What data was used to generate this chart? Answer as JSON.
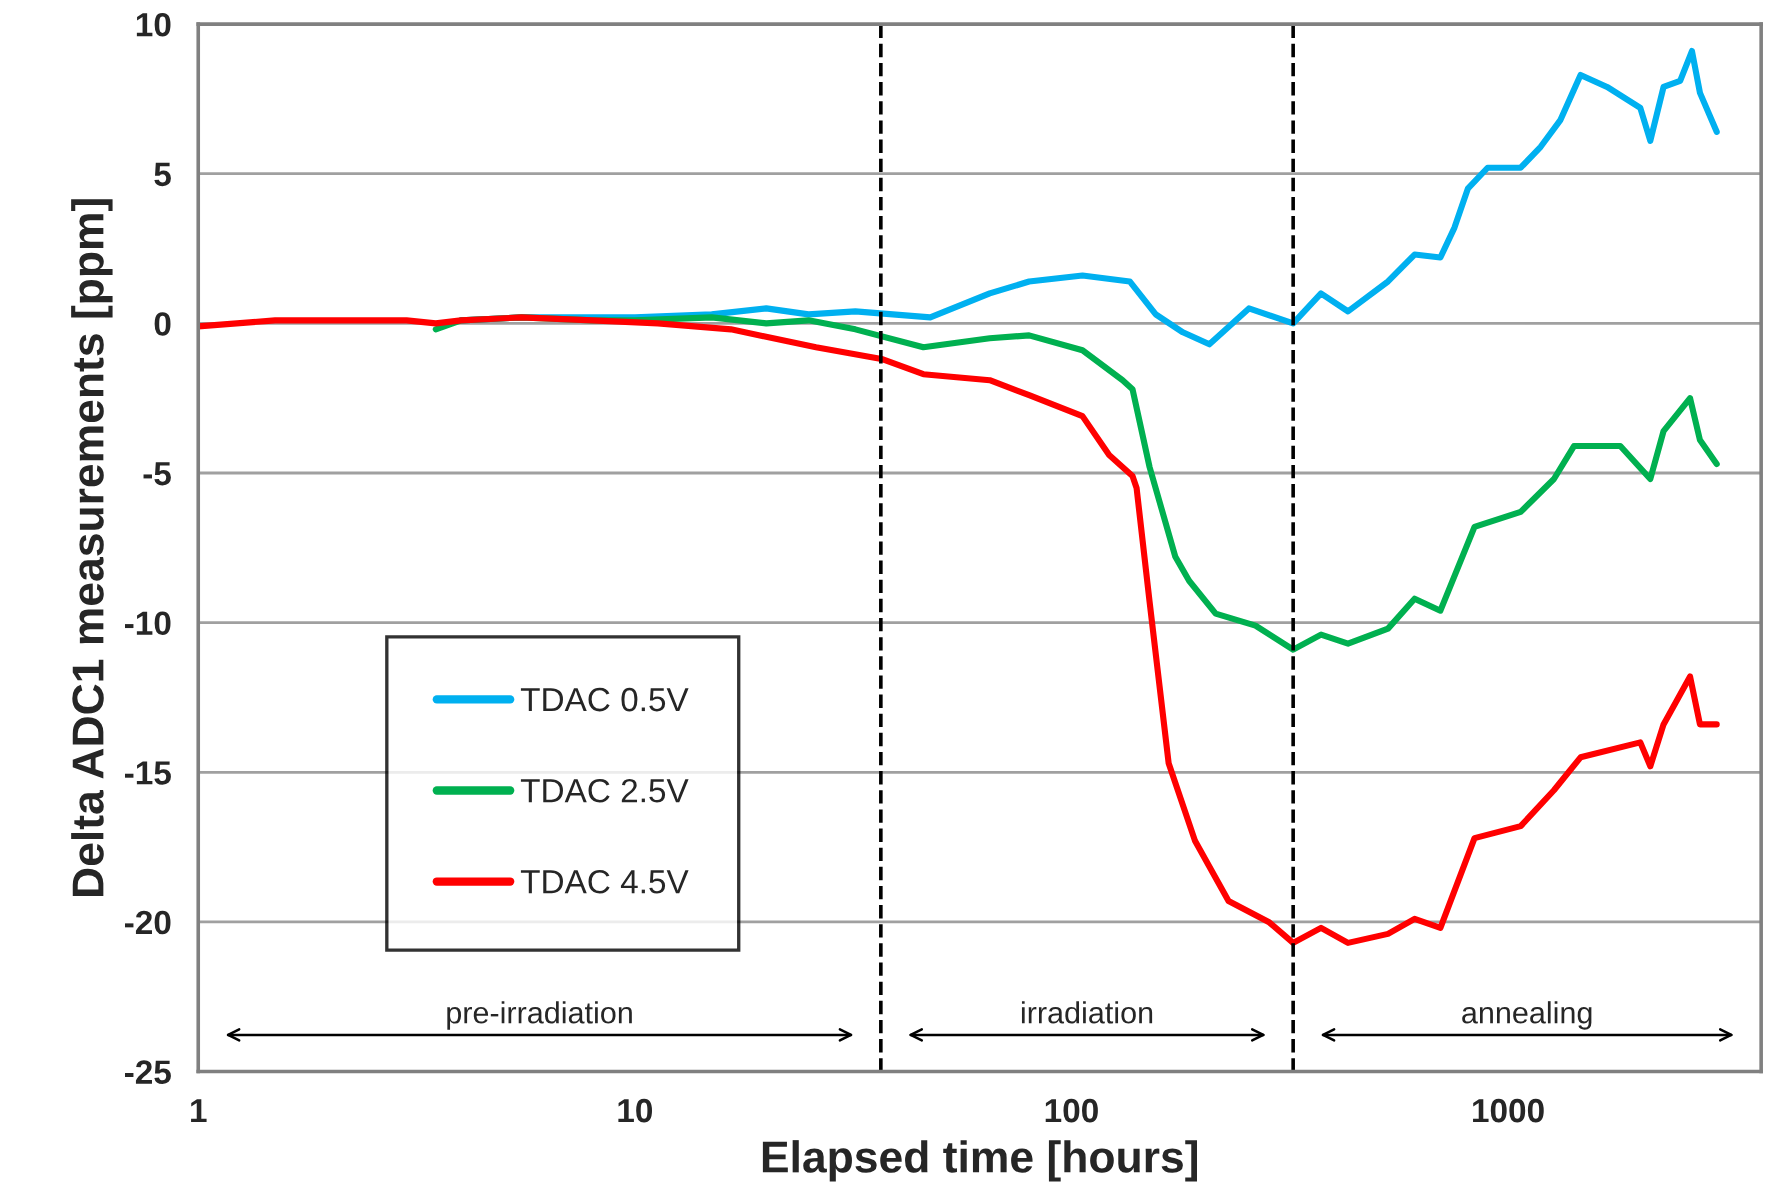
{
  "chart_data": {
    "type": "line",
    "xlabel": "Elapsed time [hours]",
    "ylabel": "Delta ADC1 measurements [ppm]",
    "log": "x",
    "xlim": [
      1,
      3800
    ],
    "xticks": [
      1,
      10,
      100,
      1000
    ],
    "ylim": [
      -25,
      10
    ],
    "yticks": [
      -25,
      -20,
      -15,
      -10,
      -5,
      0,
      5,
      10
    ],
    "grid": "y",
    "legend": "bottom left",
    "line_style": "solid",
    "marker": "none",
    "series": [
      {
        "name": "TDAC 0.5V",
        "color": "#00b0f0",
        "x": [
          4,
          5.5,
          8,
          10,
          15,
          20,
          25,
          32,
          47.5,
          65,
          80,
          106,
          136,
          156,
          180,
          207,
          255,
          322,
          373,
          430,
          531,
          611,
          700,
          754,
          809,
          898,
          1069,
          1188,
          1319,
          1466,
          1686,
          2009,
          2118,
          2271,
          2479,
          2638,
          2752,
          3006
        ],
        "values": [
          0.1,
          0.2,
          0.2,
          0.2,
          0.3,
          0.5,
          0.3,
          0.4,
          0.2,
          1.0,
          1.4,
          1.6,
          1.4,
          0.3,
          -0.3,
          -0.7,
          0.5,
          0.0,
          1.0,
          0.4,
          1.4,
          2.3,
          2.2,
          3.2,
          4.5,
          5.2,
          5.2,
          5.9,
          6.8,
          8.3,
          7.9,
          7.2,
          6.1,
          7.9,
          8.1,
          9.1,
          7.7,
          6.4
        ]
      },
      {
        "name": "TDAC 2.5V",
        "color": "#00b050",
        "x": [
          3.5,
          4,
          5.5,
          8,
          10,
          15,
          20,
          25,
          32,
          45.8,
          65,
          80,
          106,
          131,
          138,
          151,
          173,
          186,
          214,
          264,
          322,
          373,
          430,
          531,
          611,
          700,
          838,
          1069,
          1274,
          1416,
          1808,
          2118,
          2271,
          2612,
          2752,
          3006
        ],
        "values": [
          -0.2,
          0.1,
          0.2,
          0.1,
          0.1,
          0.2,
          0.0,
          0.1,
          -0.2,
          -0.8,
          -0.5,
          -0.4,
          -0.9,
          -1.9,
          -2.2,
          -4.8,
          -7.8,
          -8.6,
          -9.7,
          -10.1,
          -10.9,
          -10.4,
          -10.7,
          -10.2,
          -9.2,
          -9.6,
          -6.8,
          -6.3,
          -5.2,
          -4.1,
          -4.1,
          -5.2,
          -3.6,
          -2.5,
          -3.9,
          -4.7
        ]
      },
      {
        "name": "TDAC 4.5V",
        "color": "#ff0000",
        "x": [
          1,
          1.5,
          2,
          3,
          3.5,
          4,
          5.5,
          8,
          11.3,
          16.6,
          26,
          37,
          45.8,
          65,
          80,
          106,
          122,
          138,
          141,
          151,
          167,
          192,
          229,
          283,
          322,
          373,
          430,
          531,
          611,
          700,
          838,
          1069,
          1274,
          1466,
          2009,
          2118,
          2271,
          2612,
          2752,
          3006
        ],
        "values": [
          -0.1,
          0.1,
          0.1,
          0.1,
          0.0,
          0.1,
          0.2,
          0.1,
          0.0,
          -0.2,
          -0.8,
          -1.2,
          -1.7,
          -1.9,
          -2.4,
          -3.1,
          -4.4,
          -5.1,
          -5.5,
          -9.3,
          -14.7,
          -17.3,
          -19.3,
          -20.0,
          -20.7,
          -20.2,
          -20.7,
          -20.4,
          -19.9,
          -20.2,
          -17.2,
          -16.8,
          -15.6,
          -14.5,
          -14.0,
          -14.8,
          -13.4,
          -11.8,
          -13.4,
          -13.4
        ]
      }
    ],
    "ref_lines": [
      {
        "axis": "x",
        "value": 36.6,
        "color": "#000000",
        "line_style": "dashed"
      },
      {
        "axis": "x",
        "value": 322,
        "color": "#000000",
        "line_style": "dashed"
      }
    ],
    "annotations": [
      "pre-irradiation",
      "irradiation",
      "annealing"
    ]
  }
}
